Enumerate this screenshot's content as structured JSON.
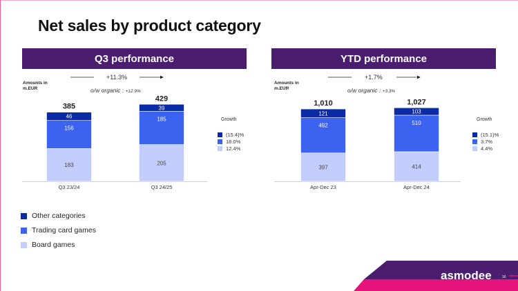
{
  "slide": {
    "title": "Net sales by product category",
    "page_number": "16",
    "brand": "asmodee"
  },
  "colors": {
    "header_bg": "#4b1d6e",
    "other": "#0a2aa6",
    "trading": "#3c63f0",
    "board": "#c2cdfb",
    "footer_pink": "#e5137a",
    "footer_purple": "#4b1d6e"
  },
  "legend": [
    {
      "label": "Other categories",
      "color": "#0a2aa6"
    },
    {
      "label": "Trading card games",
      "color": "#3c63f0"
    },
    {
      "label": "Board games",
      "color": "#c2cdfb"
    }
  ],
  "panels": {
    "q3": {
      "header": "Q3 performance",
      "amounts_label_1": "Amounts in",
      "amounts_label_2": "m.EUR",
      "growth_total": "+11.3%",
      "organic_label": "o/w organic :",
      "organic_value": "+12.9%",
      "growth_title": "Growth",
      "growth_rates": [
        "(15.4)%",
        "18.0%",
        "12.4%"
      ]
    },
    "ytd": {
      "header": "YTD performance",
      "amounts_label_1": "Amounts in",
      "amounts_label_2": "m.EUR",
      "growth_total": "+1.7%",
      "organic_label": "o/w organic :",
      "organic_value": "+3.3%",
      "growth_title": "Growth",
      "growth_rates": [
        "(15.1)%",
        "3.7%",
        "4.4%"
      ]
    }
  },
  "chart_data": [
    {
      "type": "bar",
      "stacked": true,
      "title": "Q3 performance",
      "categories": [
        "Q3 23/24",
        "Q3 24/25"
      ],
      "totals": [
        "385",
        "429"
      ],
      "series": [
        {
          "name": "Board games",
          "values": [
            183,
            205
          ],
          "labels": [
            "183",
            "205"
          ]
        },
        {
          "name": "Trading card games",
          "values": [
            156,
            185
          ],
          "labels": [
            "156",
            "185"
          ]
        },
        {
          "name": "Other categories",
          "values": [
            46,
            39
          ],
          "labels": [
            "46",
            "39"
          ]
        }
      ],
      "ylim": [
        0,
        430
      ]
    },
    {
      "type": "bar",
      "stacked": true,
      "title": "YTD performance",
      "categories": [
        "Apr-Dec 23",
        "Apr-Dec 24"
      ],
      "totals": [
        "1,010",
        "1,027"
      ],
      "series": [
        {
          "name": "Board games",
          "values": [
            397,
            414
          ],
          "labels": [
            "397",
            "414"
          ]
        },
        {
          "name": "Trading card games",
          "values": [
            492,
            510
          ],
          "labels": [
            "492",
            "510"
          ]
        },
        {
          "name": "Other categories",
          "values": [
            121,
            103
          ],
          "labels": [
            "121",
            "103"
          ]
        }
      ],
      "ylim": [
        0,
        1030
      ]
    }
  ]
}
